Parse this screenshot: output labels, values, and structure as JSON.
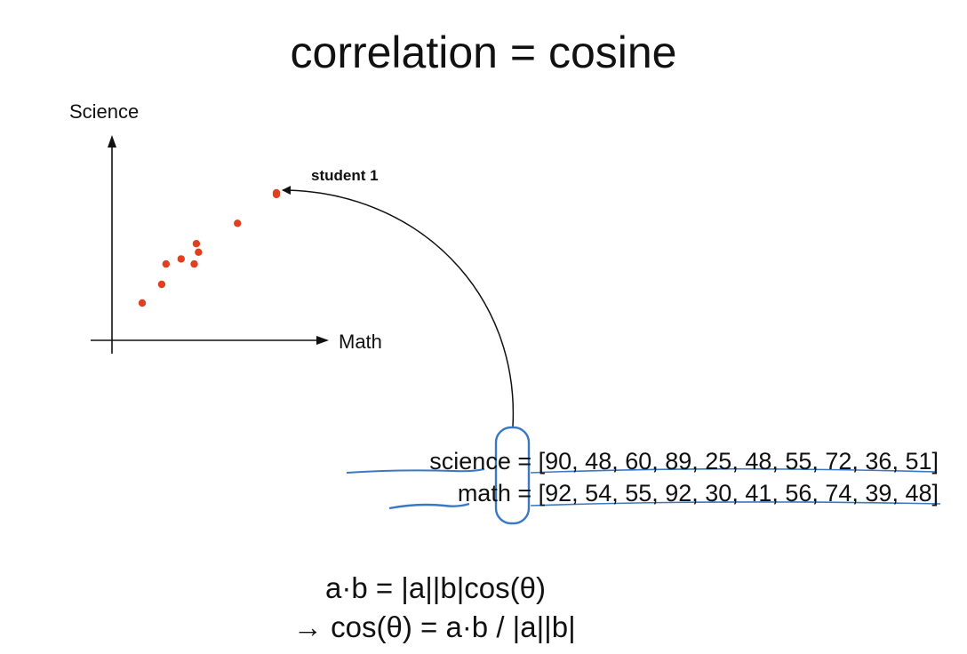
{
  "title": "correlation = cosine",
  "chart": {
    "y_axis_label": "Science",
    "x_axis_label": "Math",
    "annotation": "student 1",
    "point_color": "#e0401f"
  },
  "chart_data": {
    "type": "scatter",
    "title": "",
    "xlabel": "Math",
    "ylabel": "Science",
    "grid": false,
    "points": [
      {
        "x": 92,
        "y": 90
      },
      {
        "x": 54,
        "y": 48
      },
      {
        "x": 55,
        "y": 60
      },
      {
        "x": 92,
        "y": 89
      },
      {
        "x": 30,
        "y": 25
      },
      {
        "x": 41,
        "y": 48
      },
      {
        "x": 56,
        "y": 55
      },
      {
        "x": 74,
        "y": 72
      },
      {
        "x": 39,
        "y": 36
      },
      {
        "x": 48,
        "y": 51
      }
    ]
  },
  "vectors": {
    "science": {
      "name": "science",
      "prefix": " = [",
      "first": "90",
      "rest": ", 48, 60, 89, 25, 48, 55, 72, 36, 51]"
    },
    "math": {
      "name": "math",
      "prefix": " = [",
      "first": "92",
      "rest": ", 54, 55, 92, 30, 41, 56, 74, 39, 48]"
    }
  },
  "highlight_color": "#3a78c4",
  "formulas": {
    "line1": "a·b = |a||b|cos(θ)",
    "line2": "cos(θ) = a·b / |a||b|"
  }
}
